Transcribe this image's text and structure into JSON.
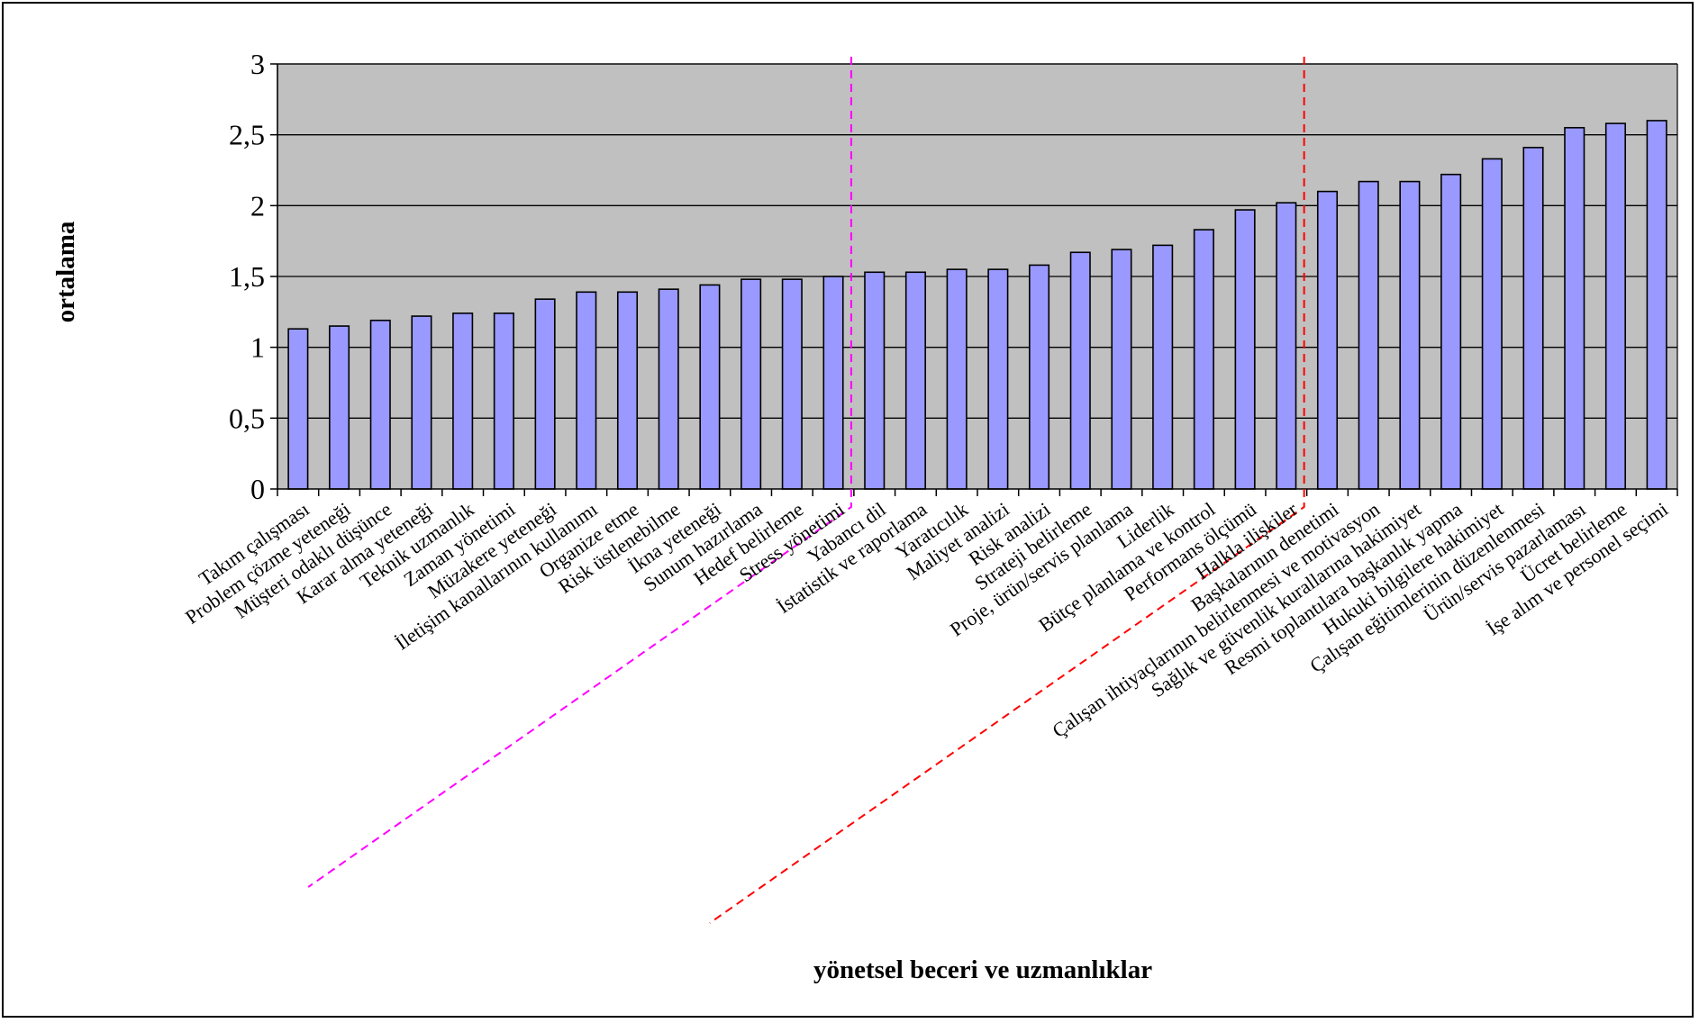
{
  "chart_data": {
    "type": "bar",
    "title": "",
    "xlabel": "yönetsel beceri ve  uzmanlıklar",
    "ylabel": "ortalama",
    "ylim": [
      0,
      3
    ],
    "yticks": [
      "0",
      "0,5",
      "1",
      "1,5",
      "2",
      "2,5",
      "3"
    ],
    "grid": true,
    "colors": {
      "plot_bg": "#c0c0c0",
      "bar": "#9999ff",
      "bar_edge": "#000000",
      "divider_1": "#ff00ff",
      "divider_2": "#ff0000"
    },
    "dividers": [
      {
        "after_category_index": 13,
        "color": "#ff00ff",
        "style": "dashed"
      },
      {
        "after_category_index": 24,
        "color": "#ff0000",
        "style": "dashed"
      }
    ],
    "categories": [
      "Takım çalışması",
      "Problem çözme yeteneği",
      "Müşteri odaklı düşünce",
      "Karar alma yeteneği",
      "Teknik uzmanlık",
      "Zaman yönetimi",
      "Müzakere yeteneği",
      "İletişim kanallarının kullanımı",
      "Organize etme",
      "Risk üstlenebilme",
      "İkna yeteneği",
      "Sunum hazırlama",
      "Hedef belirleme",
      "Stress yönetimi",
      "Yabancı dil",
      "İstatistik ve raporlama",
      "Yaratıcılık",
      "Maliyet analizi",
      "Risk analizi",
      "Strateji belirleme",
      "Proje, ürün/servis planlama",
      "Liderlik",
      "Bütçe planlama ve kontrol",
      "Performans ölçümü",
      "Halkla ilişkiler",
      "Başkalarının denetimi",
      "Çalışan ihtiyaçlarının belirlenmesi ve motivasyon",
      "Sağlık ve güvenlik kurallarına hakimiyet",
      "Resmi toplantılara başkanlık yapma",
      "Hukuki bilgilere hakimiyet",
      "Çalışan eğitimlerinin düzenlenmesi",
      "Ürün/servis pazarlaması",
      "Ücret belirleme",
      "İşe alım ve personel seçimi"
    ],
    "values": [
      1.13,
      1.15,
      1.19,
      1.22,
      1.24,
      1.24,
      1.34,
      1.39,
      1.39,
      1.41,
      1.44,
      1.48,
      1.48,
      1.5,
      1.53,
      1.53,
      1.55,
      1.55,
      1.58,
      1.67,
      1.69,
      1.72,
      1.83,
      1.97,
      2.02,
      2.1,
      2.17,
      2.17,
      2.22,
      2.33,
      2.41,
      2.55,
      2.58,
      2.6
    ]
  }
}
